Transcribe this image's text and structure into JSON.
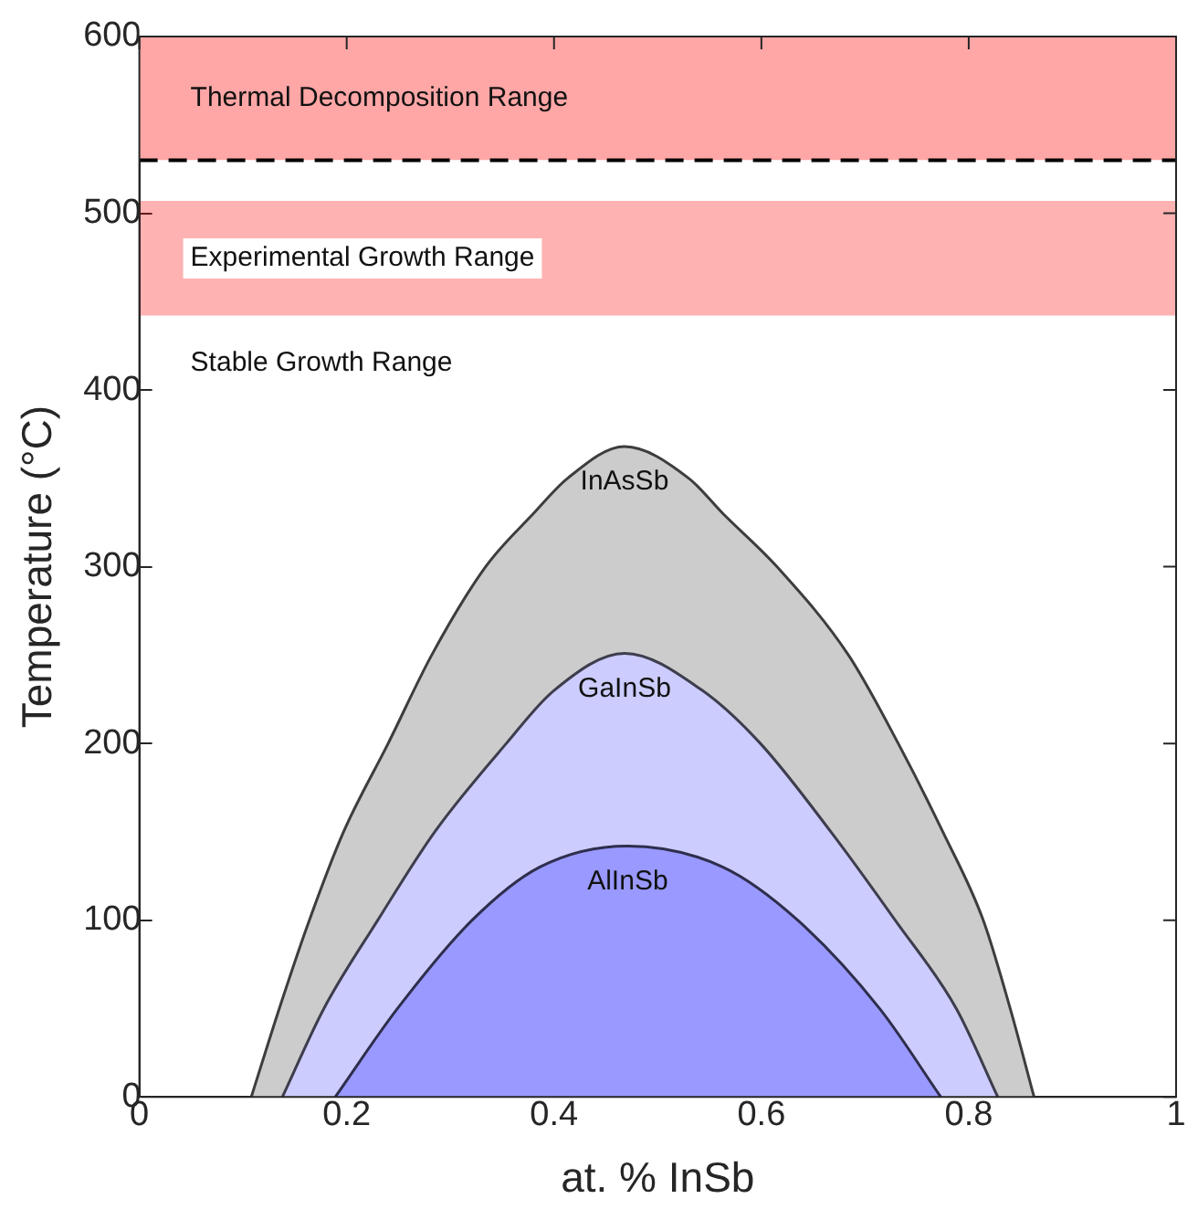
{
  "chart_data": {
    "type": "area",
    "xlabel": "at. % InSb",
    "ylabel": "Temperature (°C)",
    "xlim": [
      0,
      1
    ],
    "ylim": [
      0,
      600
    ],
    "xticks": [
      0,
      0.2,
      0.4,
      0.6,
      0.8,
      1
    ],
    "yticks": [
      0,
      100,
      200,
      300,
      400,
      500,
      600
    ],
    "grid": false,
    "legend": false,
    "series": [
      {
        "name": "InAsSb",
        "color": "#cccccc",
        "x": [
          0.108,
          0.135,
          0.164,
          0.197,
          0.24,
          0.282,
          0.334,
          0.38,
          0.413,
          0.468,
          0.53,
          0.563,
          0.615,
          0.684,
          0.732,
          0.775,
          0.814,
          0.84,
          0.863
        ],
        "values": [
          0,
          50,
          100,
          150,
          200,
          250,
          300,
          330,
          350,
          368,
          350,
          330,
          300,
          250,
          200,
          150,
          100,
          50,
          0
        ]
      },
      {
        "name": "GaInSb",
        "color": "#ccccff",
        "x": [
          0.138,
          0.178,
          0.23,
          0.285,
          0.354,
          0.4,
          0.468,
          0.543,
          0.599,
          0.667,
          0.729,
          0.788,
          0.828
        ],
        "values": [
          0,
          50,
          100,
          150,
          200,
          230,
          251,
          230,
          200,
          150,
          100,
          50,
          0
        ]
      },
      {
        "name": "AlInSb",
        "color": "#9999ff",
        "x": [
          0.189,
          0.249,
          0.321,
          0.386,
          0.471,
          0.563,
          0.635,
          0.714,
          0.773
        ],
        "values": [
          0,
          50,
          100,
          130,
          142,
          130,
          100,
          50,
          0
        ]
      }
    ],
    "bands": [
      {
        "axis": "y",
        "from": 530,
        "to": 600,
        "label": "Thermal Decomposition Range",
        "color": "#ffa6a6"
      },
      {
        "axis": "y",
        "from": 442,
        "to": 507,
        "label": "Experimental Growth Range",
        "color": "#ff0000"
      }
    ],
    "ref_lines": [
      {
        "axis": "y",
        "value": 530,
        "color": "#000000",
        "line_style": "dashed"
      }
    ],
    "annotations": [
      "Stable Growth Range"
    ]
  }
}
